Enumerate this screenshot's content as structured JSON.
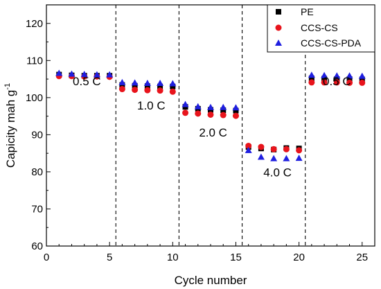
{
  "chart_data": {
    "type": "scatter",
    "xlabel": "Cycle number",
    "ylabel_main": "Capicity mah g",
    "ylabel_sup": "-1",
    "xlim": [
      0,
      26
    ],
    "ylim": [
      60,
      125
    ],
    "xticks": [
      0,
      5,
      10,
      15,
      20,
      25
    ],
    "yticks": [
      60,
      70,
      80,
      90,
      100,
      110,
      120
    ],
    "grid": false,
    "legend_position": "top-right",
    "x": [
      1,
      2,
      3,
      4,
      5,
      6,
      7,
      8,
      9,
      10,
      11,
      12,
      13,
      14,
      15,
      16,
      17,
      18,
      19,
      20,
      21,
      22,
      23,
      24,
      25
    ],
    "series": [
      {
        "name": "PE",
        "marker": "square",
        "color": "#000000",
        "values": [
          106.2,
          106.0,
          105.9,
          105.9,
          105.9,
          103.4,
          103.2,
          103.1,
          103.0,
          103.0,
          97.5,
          97.0,
          96.7,
          96.6,
          96.5,
          86.7,
          86.3,
          86.0,
          86.4,
          86.3,
          105.2,
          105.1,
          105.0,
          105.0,
          104.9
        ]
      },
      {
        "name": "CCS-CS",
        "marker": "circle",
        "color": "#e8141c",
        "values": [
          105.8,
          105.8,
          105.7,
          105.7,
          105.6,
          102.3,
          102.1,
          102.0,
          101.9,
          101.6,
          95.9,
          95.7,
          95.4,
          95.3,
          95.1,
          87.0,
          86.7,
          86.1,
          86.1,
          85.8,
          104.1,
          104.1,
          104.1,
          104.0,
          104.0
        ]
      },
      {
        "name": "CCS-CS-PDA",
        "marker": "triangle",
        "color": "#1f1fe0",
        "values": [
          106.6,
          106.4,
          106.3,
          106.2,
          106.2,
          104.1,
          104.0,
          103.9,
          103.9,
          103.8,
          98.2,
          97.6,
          97.4,
          97.4,
          97.3,
          85.8,
          84.0,
          83.6,
          83.6,
          83.7,
          106.1,
          106.0,
          105.9,
          105.9,
          105.8
        ]
      }
    ],
    "dividers_x": [
      5.5,
      10.5,
      15.5,
      20.5
    ],
    "annotations": [
      {
        "text": "0.5 C",
        "x": 3.2,
        "y": 103.3
      },
      {
        "text": "1.0 C",
        "x": 8.3,
        "y": 96.8
      },
      {
        "text": "2.0 C",
        "x": 13.2,
        "y": 89.5
      },
      {
        "text": "4.0 C",
        "x": 18.3,
        "y": 78.8
      },
      {
        "text": "0.5 C",
        "x": 23.0,
        "y": 103.3
      }
    ]
  }
}
